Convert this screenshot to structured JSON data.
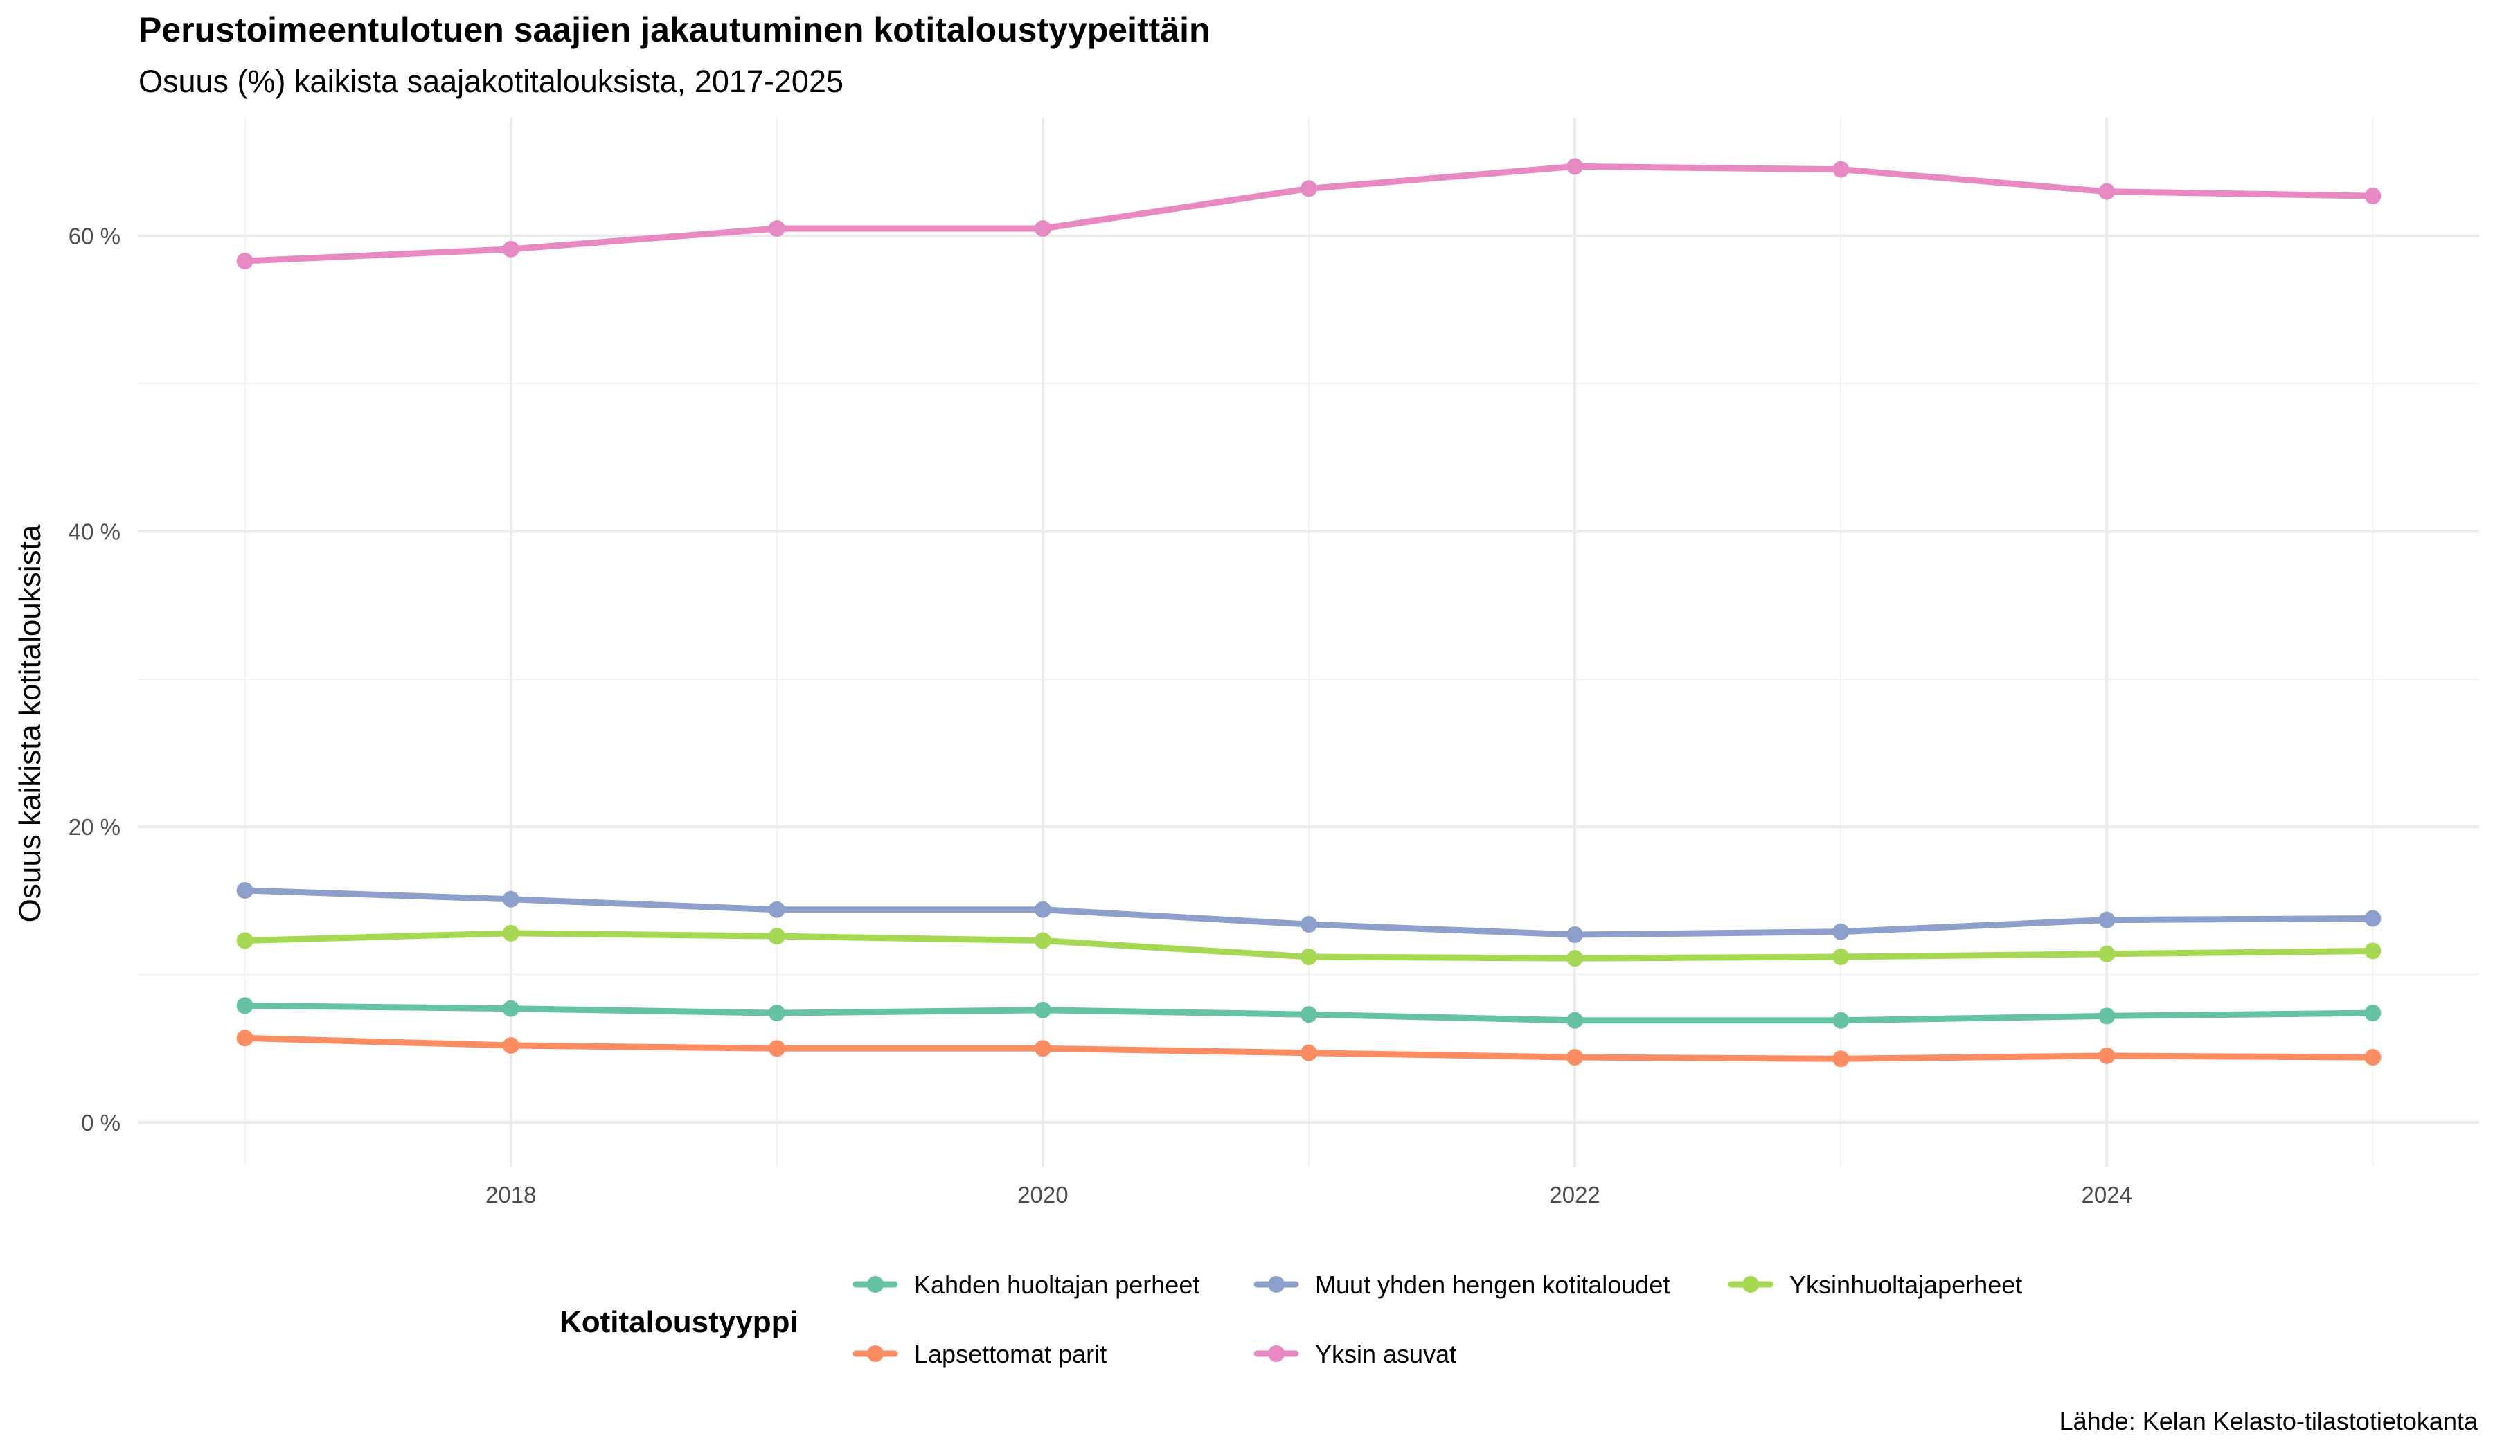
{
  "title": "Perustoimeentulotuen saajien jakautuminen kotitaloustyypeittäin",
  "subtitle": "Osuus (%) kaikista saajakotitalouksista, 2017-2025",
  "caption": "Lähde: Kelan Kelasto-tilastotietokanta",
  "chart_data": {
    "type": "line",
    "title": "Perustoimeentulotuen saajien jakautuminen kotitaloustyypeittäin",
    "subtitle": "Osuus (%) kaikista saajakotitalouksista, 2017-2025",
    "xlabel": "",
    "ylabel": "Osuus kaikista kotitalouksista",
    "x": [
      2017,
      2018,
      2019,
      2020,
      2021,
      2022,
      2023,
      2024,
      2025
    ],
    "x_ticks": [
      2018,
      2020,
      2022,
      2024
    ],
    "x_tick_labels": [
      "2018",
      "2020",
      "2022",
      "2024"
    ],
    "xlim": [
      2016.6,
      2025.4
    ],
    "y_ticks": [
      0,
      20,
      40,
      60
    ],
    "y_tick_labels": [
      "0 %",
      "20 %",
      "40 %",
      "60 %"
    ],
    "ylim": [
      -3.0,
      68.0
    ],
    "grid": true,
    "legend": {
      "title": "Kotitaloustyyppi",
      "position": "bottom"
    },
    "series": [
      {
        "name": "Kahden huoltajan perheet",
        "color": "#66C2A5",
        "values": [
          7.9,
          7.7,
          7.4,
          7.6,
          7.3,
          6.9,
          6.9,
          7.2,
          7.4
        ]
      },
      {
        "name": "Lapsettomat parit",
        "color": "#FC8D62",
        "values": [
          5.7,
          5.2,
          5.0,
          5.0,
          4.7,
          4.4,
          4.3,
          4.5,
          4.4
        ]
      },
      {
        "name": "Muut yhden hengen kotitaloudet",
        "color": "#8DA0CB",
        "values": [
          15.7,
          15.1,
          14.4,
          14.4,
          13.4,
          12.7,
          12.9,
          13.7,
          13.8
        ]
      },
      {
        "name": "Yksin asuvat",
        "color": "#E78AC3",
        "values": [
          58.3,
          59.1,
          60.5,
          60.5,
          63.2,
          64.7,
          64.5,
          63.0,
          62.7
        ]
      },
      {
        "name": "Yksinhuoltajaperheet",
        "color": "#A6D854",
        "values": [
          12.3,
          12.8,
          12.6,
          12.3,
          11.2,
          11.1,
          11.2,
          11.4,
          11.6
        ]
      }
    ]
  }
}
